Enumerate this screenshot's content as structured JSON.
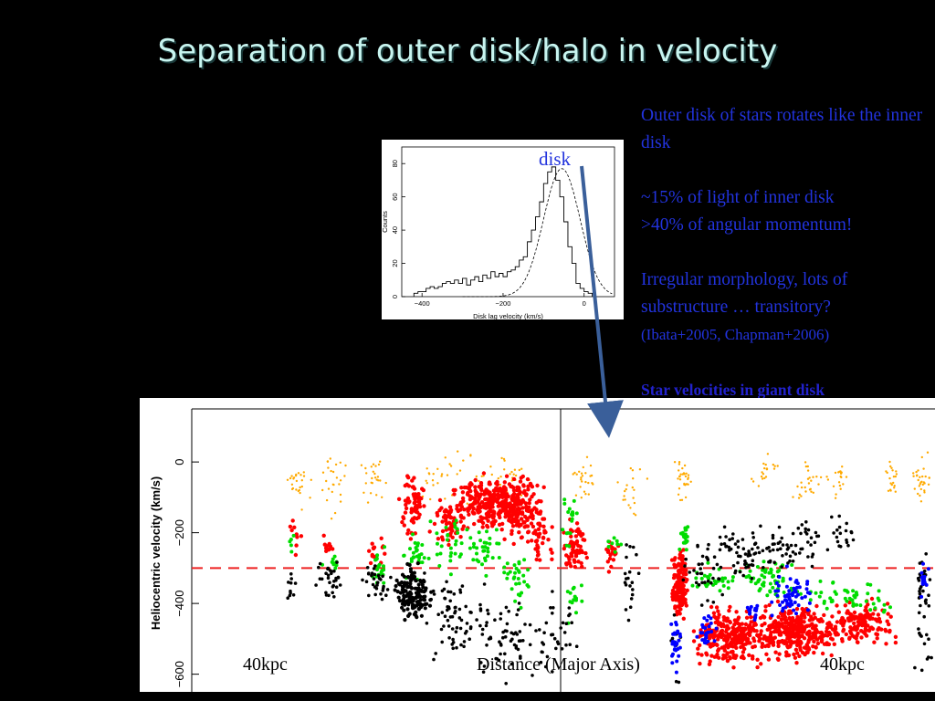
{
  "slide": {
    "title": "Separation of outer disk/halo in velocity",
    "disk_label": "disk",
    "side_text": {
      "p1": "Outer disk of stars rotates like the inner disk",
      "p2a": "~15% of light of inner disk",
      "p2b": ">40% of angular momentum!",
      "p3a": "Irregular morphology, lots of substructure … transitory?",
      "p3b": "(Ibata+2005, Chapman+2006)",
      "p4": "Star velocities in giant disk"
    },
    "bottom_labels": {
      "left": "40kpc",
      "center": "Distance (Major Axis)",
      "right": "40kpc"
    }
  },
  "chart_data": [
    {
      "type": "line",
      "xlabel": "Disk lag velocity (km/s)",
      "ylabel": "Counts",
      "xlim": [
        -450,
        75
      ],
      "ylim": [
        0,
        90
      ],
      "x_ticks": [
        -400,
        -200,
        0
      ],
      "x_tick_labels": [
        "−400",
        "−200",
        "0"
      ],
      "y_ticks": [
        0,
        20,
        40,
        60,
        80
      ],
      "histogram": {
        "bin_width": 10,
        "x_start": -420,
        "counts": [
          2,
          3,
          3,
          5,
          6,
          5,
          6,
          8,
          9,
          8,
          10,
          8,
          11,
          7,
          10,
          12,
          9,
          13,
          11,
          15,
          12,
          14,
          12,
          15,
          16,
          18,
          22,
          24,
          33,
          40,
          48,
          57,
          68,
          75,
          78,
          70,
          60,
          45,
          30,
          20,
          8,
          5,
          3,
          2
        ]
      },
      "gaussian_fit": {
        "mean": -55,
        "sigma": 45,
        "amplitude": 77
      }
    },
    {
      "type": "scatter",
      "ylabel": "Heliocentric velocity (km/s)",
      "ylim": [
        -650,
        150
      ],
      "y_ticks": [
        0,
        -200,
        -400,
        -600
      ],
      "y_tick_labels": [
        "0",
        "−200",
        "−400",
        "−600"
      ],
      "reference_line_y": -300,
      "series": [
        {
          "color": "#ffaa00"
        },
        {
          "color": "#ff0000"
        },
        {
          "color": "#00dd00"
        },
        {
          "color": "#000000"
        },
        {
          "color": "#0000ff"
        }
      ]
    }
  ]
}
